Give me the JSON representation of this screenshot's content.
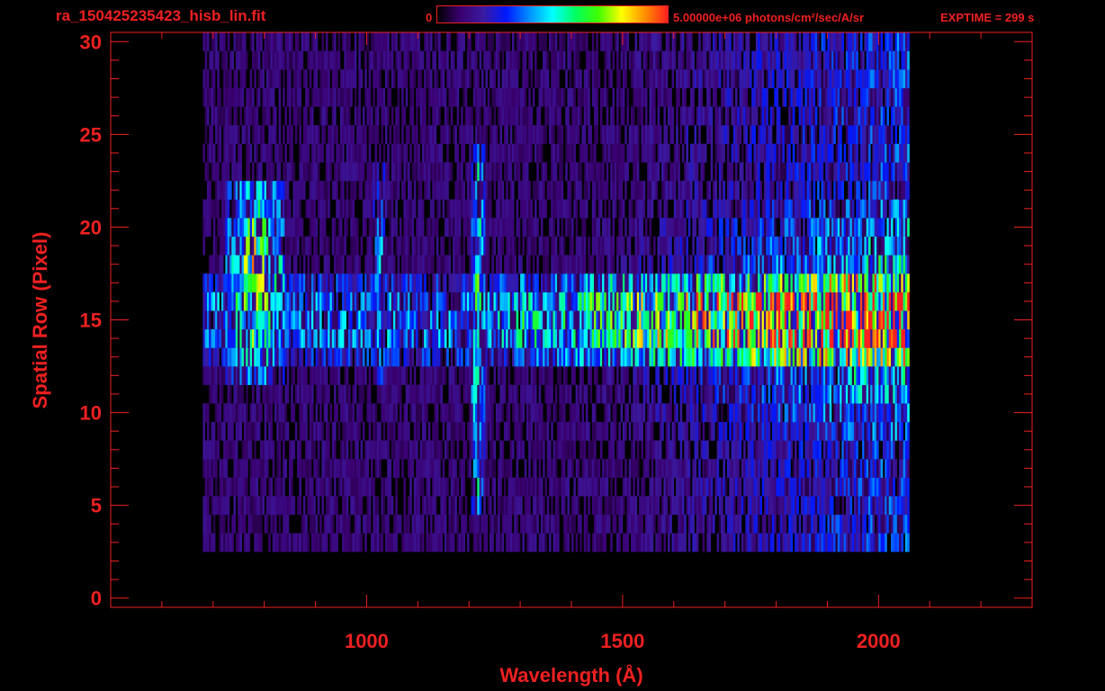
{
  "header": {
    "filename": "ra_150425235423_hisb_lin.fit",
    "colorbar_min_label": "0",
    "colorbar_max_label": "5.00000e+06 photons/cm²/sec/A/sr",
    "exptime_label": "EXPTIME = 299 s"
  },
  "colors": {
    "frame": "#f02020",
    "background": "#000000",
    "colormap": [
      "#000000",
      "#3a0070",
      "#3a1aa0",
      "#0018ff",
      "#0090ff",
      "#00ffff",
      "#00ff60",
      "#40ff00",
      "#ffff00",
      "#ff9000",
      "#ff2020"
    ]
  },
  "chart_data": {
    "type": "heatmap",
    "title": "",
    "xlabel": "Wavelength (Å)",
    "ylabel": "Spatial Row (Pixel)",
    "xlim": [
      500,
      2300
    ],
    "ylim": [
      -0.5,
      30.5
    ],
    "x_ticks": [
      1000,
      1500,
      2000
    ],
    "y_ticks": [
      0,
      5,
      10,
      15,
      20,
      25,
      30
    ],
    "grid": false,
    "colorbar": {
      "min": 0,
      "max": 5000000,
      "units": "photons/cm²/sec/A/sr"
    },
    "data_extent": {
      "x": [
        680,
        2060
      ],
      "y_rows": [
        3,
        30
      ]
    },
    "bright_rows": [
      13,
      14,
      15,
      16,
      17
    ],
    "emission_features": [
      {
        "wavelength": 780,
        "rows": [
          12,
          22
        ],
        "peak_intensity": 0.72
      },
      {
        "wavelength": 1025,
        "rows": [
          12,
          23
        ],
        "peak_intensity": 0.45
      },
      {
        "wavelength": 1216,
        "rows": [
          5,
          24
        ],
        "peak_intensity": 0.62
      },
      {
        "wavelength": 1304,
        "rows": [
          13,
          17
        ],
        "peak_intensity": 0.5
      }
    ],
    "continuum": {
      "peak_wavelength": 2000,
      "peak_intensity": 0.95,
      "peak_rows": [
        14,
        16
      ]
    }
  }
}
